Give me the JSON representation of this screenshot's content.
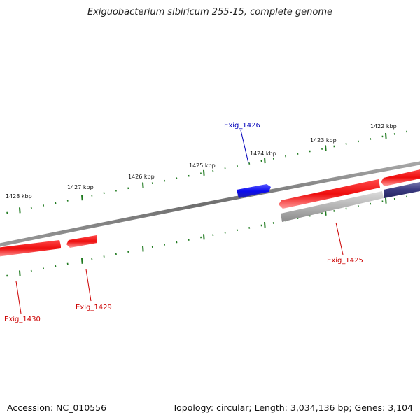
{
  "title": "Exiguobacterium sibiricum 255-15, complete genome",
  "footer": {
    "accession": "Accession: NC_010556",
    "summary": "Topology: circular; Length: 3,034,136 bp; Genes: 3,104"
  },
  "colors": {
    "backbone": "#7a7a7a",
    "tick": "#1f7a1f",
    "gene_forward_red": "#ee1111",
    "gene_reverse_grey": "#bdbdbd",
    "gene_reverse_navy": "#3a3a80",
    "gene_highlight_blue": "#1010ee",
    "label_red": "#cc0000",
    "label_blue": "#0000bb"
  },
  "ticks": [
    {
      "label": "1428 kbp"
    },
    {
      "label": "1427 kbp"
    },
    {
      "label": "1426 kbp"
    },
    {
      "label": "1425 kbp"
    },
    {
      "label": "1424 kbp"
    },
    {
      "label": "1423 kbp"
    },
    {
      "label": "1422 kbp"
    }
  ],
  "genes": [
    {
      "label": "Exig_1430",
      "color": "red"
    },
    {
      "label": "Exig_1429",
      "color": "red"
    },
    {
      "label": "Exig_1426",
      "color": "blue"
    },
    {
      "label": "Exig_1425",
      "color": "red"
    }
  ]
}
